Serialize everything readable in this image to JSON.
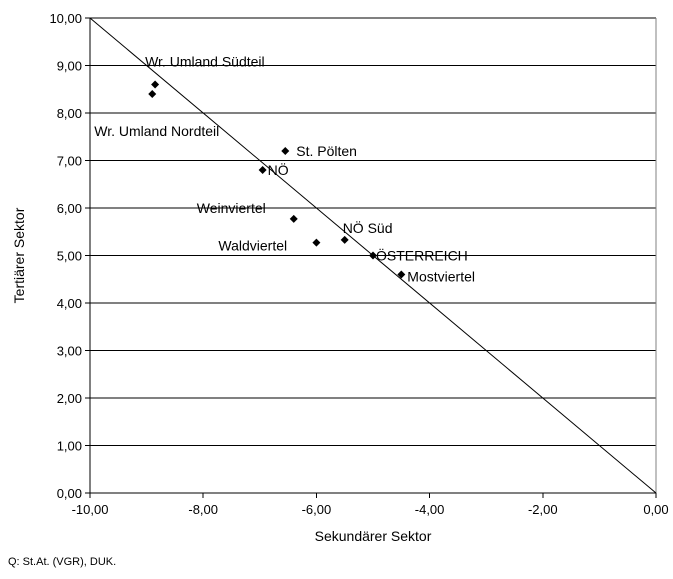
{
  "chart_data": {
    "type": "scatter",
    "title": "",
    "xlabel": "Sekundärer Sektor",
    "ylabel": "Tertiärer Sektor",
    "xlim": [
      -10,
      0
    ],
    "ylim": [
      0,
      10
    ],
    "x_ticks": [
      {
        "value": -10,
        "label": "-10,00"
      },
      {
        "value": -8,
        "label": "-8,00"
      },
      {
        "value": -6,
        "label": "-6,00"
      },
      {
        "value": -4,
        "label": "-4,00"
      },
      {
        "value": -2,
        "label": "-2,00"
      },
      {
        "value": 0,
        "label": "0,00"
      }
    ],
    "y_ticks": [
      {
        "value": 0,
        "label": "0,00"
      },
      {
        "value": 1,
        "label": "1,00"
      },
      {
        "value": 2,
        "label": "2,00"
      },
      {
        "value": 3,
        "label": "3,00"
      },
      {
        "value": 4,
        "label": "4,00"
      },
      {
        "value": 5,
        "label": "5,00"
      },
      {
        "value": 6,
        "label": "6,00"
      },
      {
        "value": 7,
        "label": "7,00"
      },
      {
        "value": 8,
        "label": "8,00"
      },
      {
        "value": 9,
        "label": "9,00"
      },
      {
        "value": 10,
        "label": "10,00"
      }
    ],
    "grid": "horizontal",
    "reference_line": {
      "from": [
        -10,
        10
      ],
      "to": [
        0,
        0
      ]
    },
    "points": [
      {
        "label": "Wr. Umland Südteil",
        "x": -8.85,
        "y": 8.6
      },
      {
        "label": "Wr. Umland Nordteil",
        "x": -8.9,
        "y": 8.4
      },
      {
        "label": "St. Pölten",
        "x": -6.55,
        "y": 7.2
      },
      {
        "label": "NÖ",
        "x": -6.95,
        "y": 6.8
      },
      {
        "label": "Weinviertel",
        "x": -6.4,
        "y": 5.77
      },
      {
        "label": "Waldviertel",
        "x": -6.0,
        "y": 5.27
      },
      {
        "label": "NÖ Süd",
        "x": -5.5,
        "y": 5.33
      },
      {
        "label": "ÖSTERREICH",
        "x": -5.0,
        "y": 5.0
      },
      {
        "label": "Mostviertel",
        "x": -4.5,
        "y": 4.6
      }
    ]
  },
  "source": "Q: St.At. (VGR), DUK."
}
